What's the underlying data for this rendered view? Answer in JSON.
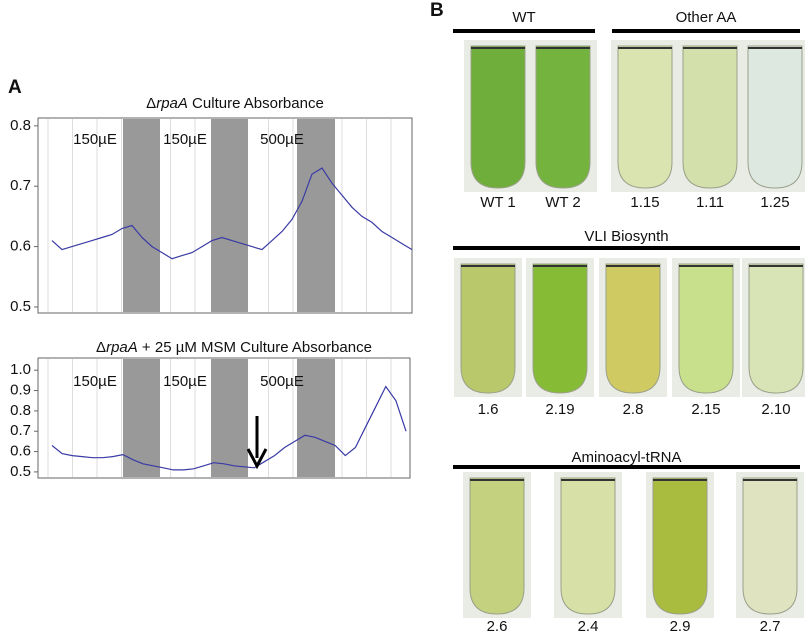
{
  "chart_data": [
    {
      "type": "line",
      "title_prefix": "Δ",
      "title_italic": "rpaA",
      "title_suffix": " Culture Absorbance",
      "band_labels": [
        "150µE",
        "150µE",
        "500µE"
      ],
      "series": [
        {
          "color": "#3a3aa6",
          "values": [
            0.61,
            0.595,
            0.6,
            0.605,
            0.61,
            0.615,
            0.62,
            0.63,
            0.635,
            0.615,
            0.6,
            0.59,
            0.58,
            0.585,
            0.59,
            0.6,
            0.61,
            0.615,
            0.61,
            0.605,
            0.6,
            0.595,
            0.61,
            0.625,
            0.645,
            0.675,
            0.72,
            0.73,
            0.705,
            0.685,
            0.665,
            0.65,
            0.64,
            0.625,
            0.615,
            0.605,
            0.595
          ]
        }
      ],
      "ylim": [
        0.49,
        0.813
      ],
      "yticks": [
        0.5,
        0.6,
        0.7,
        0.8
      ]
    },
    {
      "type": "line",
      "title_prefix": "Δ",
      "title_italic": "rpaA",
      "title_suffix": " + 25 µM MSM Culture Absorbance",
      "band_labels": [
        "150µE",
        "150µE",
        "500µE"
      ],
      "series": [
        {
          "color": "#3a3aa6",
          "values": [
            0.63,
            0.59,
            0.58,
            0.575,
            0.57,
            0.57,
            0.575,
            0.585,
            0.56,
            0.54,
            0.53,
            0.52,
            0.51,
            0.51,
            0.515,
            0.53,
            0.545,
            0.54,
            0.53,
            0.525,
            0.52,
            0.55,
            0.58,
            0.62,
            0.65,
            0.68,
            0.67,
            0.65,
            0.63,
            0.58,
            0.62,
            0.72,
            0.82,
            0.92,
            0.85,
            0.7
          ]
        }
      ],
      "ylim": [
        0.47,
        1.06
      ],
      "yticks": [
        0.5,
        0.6,
        0.7,
        0.8,
        0.9,
        {
          "value": 1,
          "label": "1.0"
        }
      ]
    }
  ],
  "figure": {
    "panel_a": "A",
    "panel_b": "B",
    "rows": [
      {
        "groups": [
          {
            "title": "WT",
            "labels": [
              "WT 1",
              "WT 2"
            ]
          },
          {
            "title": "Other AA",
            "labels": [
              "1.15",
              "1.11",
              "1.25"
            ]
          }
        ]
      },
      {
        "groups": [
          {
            "title": "VLI Biosynth",
            "labels": [
              "1.6",
              "2.19",
              "2.8",
              "2.15",
              "2.10"
            ]
          }
        ]
      },
      {
        "groups": [
          {
            "title": "Aminoacyl-tRNA",
            "labels": [
              "2.6",
              "2.4",
              "2.9",
              "2.7"
            ]
          }
        ]
      }
    ]
  }
}
